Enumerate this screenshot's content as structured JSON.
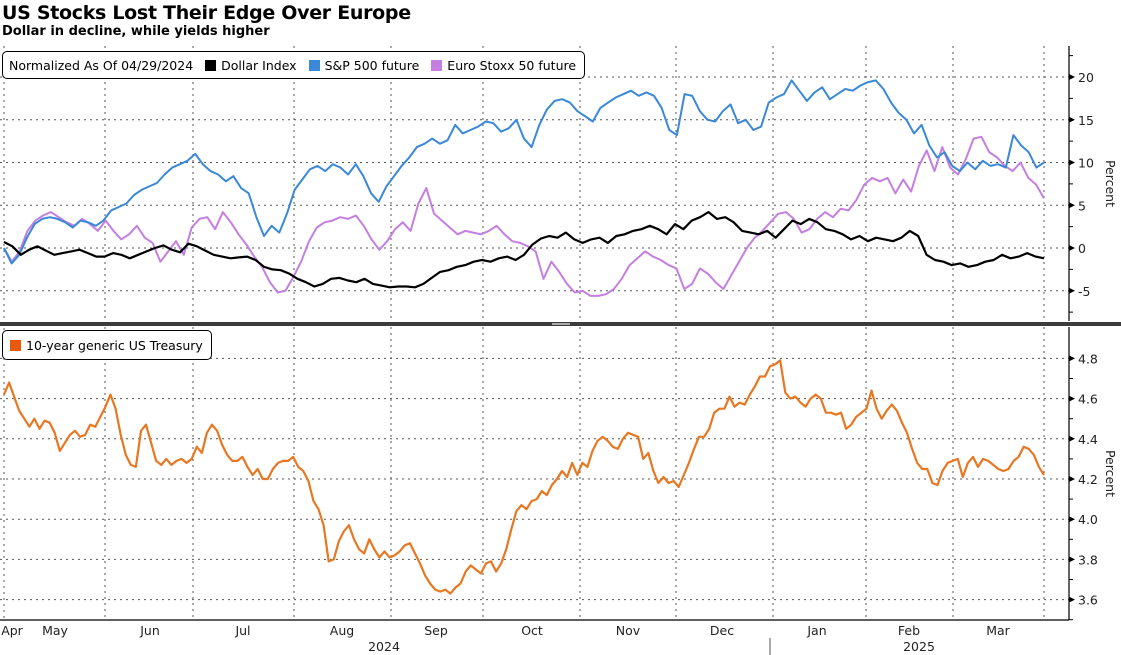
{
  "title": "US Stocks Lost Their Edge Over Europe",
  "subtitle": "Dollar in decline, while yields higher",
  "chart_data": [
    {
      "type": "line",
      "panel": "top",
      "legend_title": "Normalized As Of 04/29/2024",
      "legend": "top-left",
      "ylabel": "Percent",
      "ylim": [
        -8,
        23
      ],
      "yticks": [
        20,
        15,
        10,
        5,
        0,
        -5
      ],
      "ytick_labels": [
        "20",
        "15",
        "10",
        "5",
        "0",
        "-5"
      ],
      "x_start": "2024-04-29",
      "x_end": "2025-03-28",
      "series": [
        {
          "name": "Dollar Index",
          "color": "#000000",
          "values": [
            0.7,
            0.2,
            -0.8,
            -0.2,
            0.2,
            -0.3,
            -0.8,
            -0.6,
            -0.4,
            -0.2,
            -0.6,
            -1.0,
            -1.0,
            -0.6,
            -0.8,
            -1.2,
            -0.8,
            -0.4,
            0.0,
            0.3,
            -0.2,
            -0.5,
            0.5,
            0.2,
            -0.3,
            -0.8,
            -1.0,
            -1.2,
            -1.1,
            -1.0,
            -1.4,
            -2.2,
            -2.5,
            -2.6,
            -3.0,
            -3.6,
            -4.0,
            -4.5,
            -4.2,
            -3.6,
            -3.5,
            -3.8,
            -4.0,
            -3.6,
            -4.2,
            -4.4,
            -4.6,
            -4.5,
            -4.5,
            -4.6,
            -4.2,
            -3.5,
            -2.8,
            -2.6,
            -2.2,
            -2.0,
            -1.6,
            -1.4,
            -1.6,
            -1.2,
            -1.0,
            -1.4,
            -0.8,
            0.4,
            1.1,
            1.4,
            1.2,
            1.8,
            1.0,
            0.6,
            1.0,
            1.2,
            0.6,
            1.4,
            1.6,
            2.0,
            2.2,
            2.6,
            2.2,
            1.6,
            2.8,
            2.2,
            3.2,
            3.6,
            4.2,
            3.4,
            3.6,
            3.0,
            2.0,
            1.8,
            1.6,
            2.0,
            1.2,
            2.2,
            3.2,
            2.8,
            3.4,
            3.0,
            2.2,
            2.0,
            1.6,
            1.0,
            1.4,
            0.8,
            1.2,
            1.0,
            0.8,
            1.2,
            2.0,
            1.4,
            -0.8,
            -1.4,
            -1.6,
            -2.0,
            -1.8,
            -2.2,
            -2.0,
            -1.6,
            -1.4,
            -0.8,
            -1.2,
            -1.0,
            -0.6,
            -1.0,
            -1.2
          ]
        },
        {
          "name": "S&P 500 future",
          "color": "#3a88d8",
          "values": [
            0.0,
            -1.8,
            -0.8,
            1.2,
            2.8,
            3.4,
            3.6,
            3.4,
            3.0,
            2.4,
            3.2,
            3.0,
            2.6,
            3.2,
            4.4,
            4.8,
            5.2,
            6.2,
            6.8,
            7.2,
            7.6,
            8.6,
            9.4,
            9.8,
            10.2,
            11.0,
            9.8,
            9.0,
            8.6,
            7.8,
            8.4,
            7.0,
            6.4,
            3.6,
            1.4,
            2.6,
            1.8,
            4.0,
            6.8,
            8.0,
            9.2,
            9.6,
            9.0,
            9.8,
            9.4,
            8.6,
            9.8,
            8.4,
            6.4,
            5.4,
            7.2,
            8.4,
            9.6,
            10.6,
            11.8,
            12.2,
            12.8,
            12.2,
            12.6,
            14.4,
            13.4,
            13.8,
            14.2,
            14.8,
            14.6,
            13.6,
            14.0,
            15.0,
            12.8,
            11.8,
            14.4,
            16.2,
            17.2,
            17.4,
            17.0,
            16.0,
            15.4,
            14.8,
            16.4,
            17.0,
            17.6,
            18.0,
            18.4,
            17.8,
            18.2,
            17.8,
            16.4,
            13.8,
            13.2,
            18.0,
            17.8,
            16.0,
            15.0,
            14.8,
            16.0,
            16.8,
            14.6,
            15.0,
            13.8,
            14.2,
            17.0,
            17.6,
            18.0,
            19.6,
            18.4,
            17.2,
            18.2,
            18.8,
            17.4,
            18.0,
            18.6,
            18.4,
            19.0,
            19.4,
            19.6,
            18.6,
            17.0,
            15.8,
            15.0,
            13.4,
            14.4,
            12.0,
            10.6,
            11.2,
            9.6,
            9.0,
            10.0,
            9.2,
            10.2,
            9.6,
            9.8,
            9.4,
            13.2,
            12.0,
            11.2,
            9.4,
            10.0
          ]
        },
        {
          "name": "Euro Stoxx 50 future",
          "color": "#c47fe0",
          "values": [
            0.0,
            -1.6,
            -0.4,
            2.0,
            3.2,
            3.8,
            4.2,
            3.6,
            3.0,
            2.6,
            3.4,
            2.8,
            2.0,
            3.2,
            2.0,
            1.0,
            1.6,
            2.6,
            1.2,
            0.6,
            -1.6,
            -0.4,
            0.8,
            -0.8,
            2.4,
            3.4,
            3.6,
            2.2,
            4.2,
            3.0,
            1.6,
            0.4,
            -1.0,
            -2.2,
            -4.0,
            -5.2,
            -5.0,
            -3.4,
            -1.6,
            0.8,
            2.4,
            3.0,
            3.2,
            3.6,
            3.4,
            3.8,
            2.6,
            1.0,
            -0.2,
            0.8,
            2.2,
            3.0,
            2.0,
            5.2,
            7.0,
            4.0,
            3.2,
            2.4,
            1.6,
            2.0,
            1.8,
            1.6,
            2.0,
            2.6,
            1.6,
            0.8,
            0.6,
            0.2,
            -0.4,
            -3.6,
            -1.6,
            -2.8,
            -4.2,
            -5.2,
            -5.0,
            -5.6,
            -5.6,
            -5.4,
            -4.8,
            -3.6,
            -2.0,
            -1.2,
            -0.4,
            -1.0,
            -1.4,
            -2.0,
            -2.4,
            -4.8,
            -4.2,
            -2.4,
            -3.0,
            -4.0,
            -4.8,
            -3.2,
            -1.6,
            0.0,
            1.2,
            2.0,
            3.0,
            4.0,
            4.2,
            3.4,
            1.8,
            2.2,
            3.4,
            4.2,
            3.6,
            4.6,
            4.4,
            5.6,
            7.4,
            8.2,
            7.8,
            8.2,
            6.4,
            8.0,
            6.6,
            9.6,
            11.4,
            9.0,
            11.8,
            9.4,
            8.6,
            10.4,
            12.8,
            13.0,
            11.2,
            10.6,
            9.6,
            9.0,
            10.0,
            8.2,
            7.4,
            5.8
          ]
        }
      ]
    },
    {
      "type": "line",
      "panel": "bottom",
      "legend": "top-left",
      "ylabel": "Percent",
      "ylim": [
        3.55,
        4.93
      ],
      "yticks": [
        4.8,
        4.6,
        4.4,
        4.2,
        4.0,
        3.8,
        3.6
      ],
      "ytick_labels": [
        "4.8",
        "4.6",
        "4.4",
        "4.2",
        "4.0",
        "3.8",
        "3.6"
      ],
      "x_start": "2024-04-29",
      "x_end": "2025-03-28",
      "xtick_labels": [
        "Apr",
        "May",
        "Jun",
        "Jul",
        "Aug",
        "Sep",
        "Oct",
        "Nov",
        "Dec",
        "Jan",
        "Feb",
        "Mar"
      ],
      "year_labels": [
        "2024",
        "2025"
      ],
      "series": [
        {
          "name": "10-year generic US Treasury",
          "color": "#e87722",
          "values": [
            4.62,
            4.68,
            4.61,
            4.54,
            4.5,
            4.46,
            4.5,
            4.45,
            4.49,
            4.48,
            4.43,
            4.34,
            4.38,
            4.42,
            4.44,
            4.41,
            4.42,
            4.47,
            4.46,
            4.51,
            4.56,
            4.62,
            4.55,
            4.42,
            4.32,
            4.27,
            4.26,
            4.44,
            4.47,
            4.38,
            4.29,
            4.27,
            4.3,
            4.27,
            4.29,
            4.3,
            4.28,
            4.3,
            4.36,
            4.33,
            4.43,
            4.47,
            4.44,
            4.37,
            4.32,
            4.29,
            4.29,
            4.31,
            4.26,
            4.22,
            4.25,
            4.2,
            4.2,
            4.25,
            4.28,
            4.29,
            4.29,
            4.31,
            4.26,
            4.24,
            4.19,
            4.09,
            4.05,
            3.97,
            3.79,
            3.8,
            3.89,
            3.94,
            3.97,
            3.9,
            3.85,
            3.83,
            3.9,
            3.85,
            3.81,
            3.84,
            3.81,
            3.82,
            3.84,
            3.87,
            3.88,
            3.83,
            3.78,
            3.72,
            3.68,
            3.65,
            3.64,
            3.65,
            3.63,
            3.66,
            3.68,
            3.74,
            3.77,
            3.75,
            3.73,
            3.78,
            3.79,
            3.74,
            3.78,
            3.85,
            3.95,
            4.04,
            4.07,
            4.05,
            4.09,
            4.1,
            4.14,
            4.12,
            4.17,
            4.2,
            4.24,
            4.21,
            4.28,
            4.22,
            4.28,
            4.26,
            4.34,
            4.39,
            4.41,
            4.39,
            4.36,
            4.35,
            4.4,
            4.43,
            4.42,
            4.41,
            4.3,
            4.33,
            4.24,
            4.18,
            4.21,
            4.18,
            4.19,
            4.16,
            4.22,
            4.28,
            4.35,
            4.41,
            4.41,
            4.45,
            4.53,
            4.55,
            4.55,
            4.61,
            4.56,
            4.58,
            4.57,
            4.62,
            4.66,
            4.71,
            4.71,
            4.76,
            4.77,
            4.79,
            4.63,
            4.6,
            4.61,
            4.58,
            4.56,
            4.6,
            4.62,
            4.6,
            4.53,
            4.53,
            4.52,
            4.53,
            4.45,
            4.47,
            4.51,
            4.53,
            4.55,
            4.64,
            4.55,
            4.5,
            4.54,
            4.57,
            4.54,
            4.48,
            4.43,
            4.35,
            4.28,
            4.25,
            4.25,
            4.18,
            4.17,
            4.24,
            4.28,
            4.29,
            4.3,
            4.21,
            4.28,
            4.31,
            4.26,
            4.3,
            4.29,
            4.27,
            4.25,
            4.24,
            4.25,
            4.29,
            4.31,
            4.36,
            4.35,
            4.32,
            4.26,
            4.22
          ]
        }
      ]
    }
  ]
}
